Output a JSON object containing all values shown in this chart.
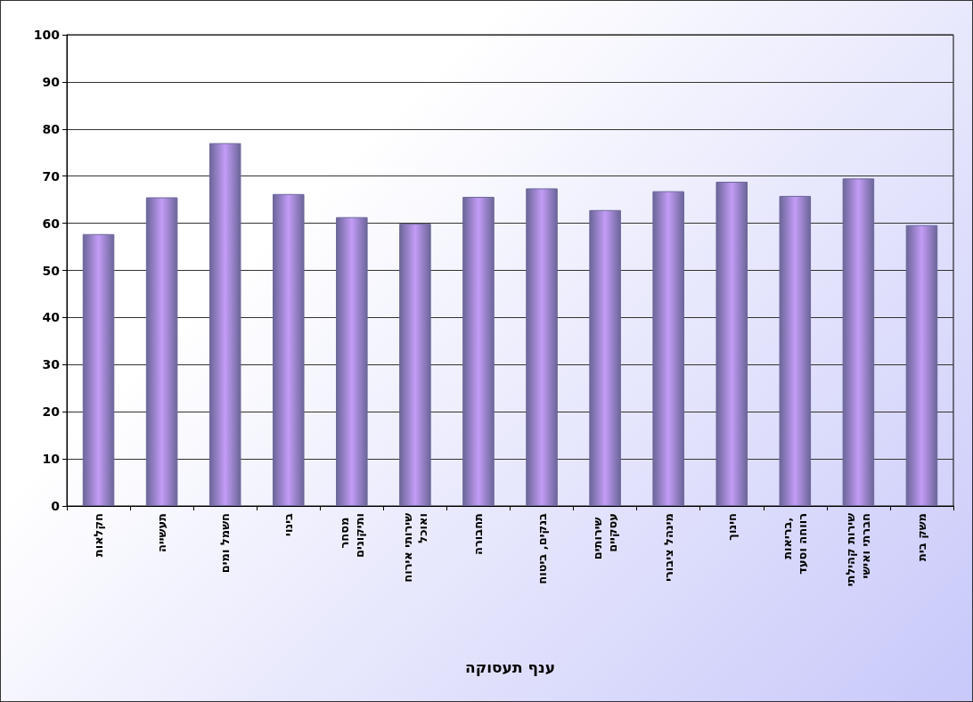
{
  "chart_data": {
    "type": "bar",
    "xlabel": "ענף תעסוקה",
    "categories": [
      "חקלאות",
      "תעשייה",
      "חשמל ומים",
      "בינוי",
      "מסחר ותיקונים",
      "שירותי אירוח ואוכל",
      "תחבורה",
      "בנקים, ביטוח",
      "שירותים עסקיים",
      "מינהל ציבורי",
      "חינוך",
      "בריאות, רווחה וסעד",
      "שירות קהילתי חברתי ואישי",
      "משק בית"
    ],
    "values": [
      57.7,
      65.5,
      77.0,
      66.2,
      61.3,
      59.9,
      65.6,
      67.4,
      62.8,
      66.8,
      68.8,
      65.8,
      69.5,
      59.6
    ],
    "color": "#6b6699",
    "ylim": [
      0,
      100
    ],
    "yticks": [
      0,
      10,
      20,
      30,
      40,
      50,
      60,
      70,
      80,
      90,
      100
    ],
    "grid": "y"
  }
}
